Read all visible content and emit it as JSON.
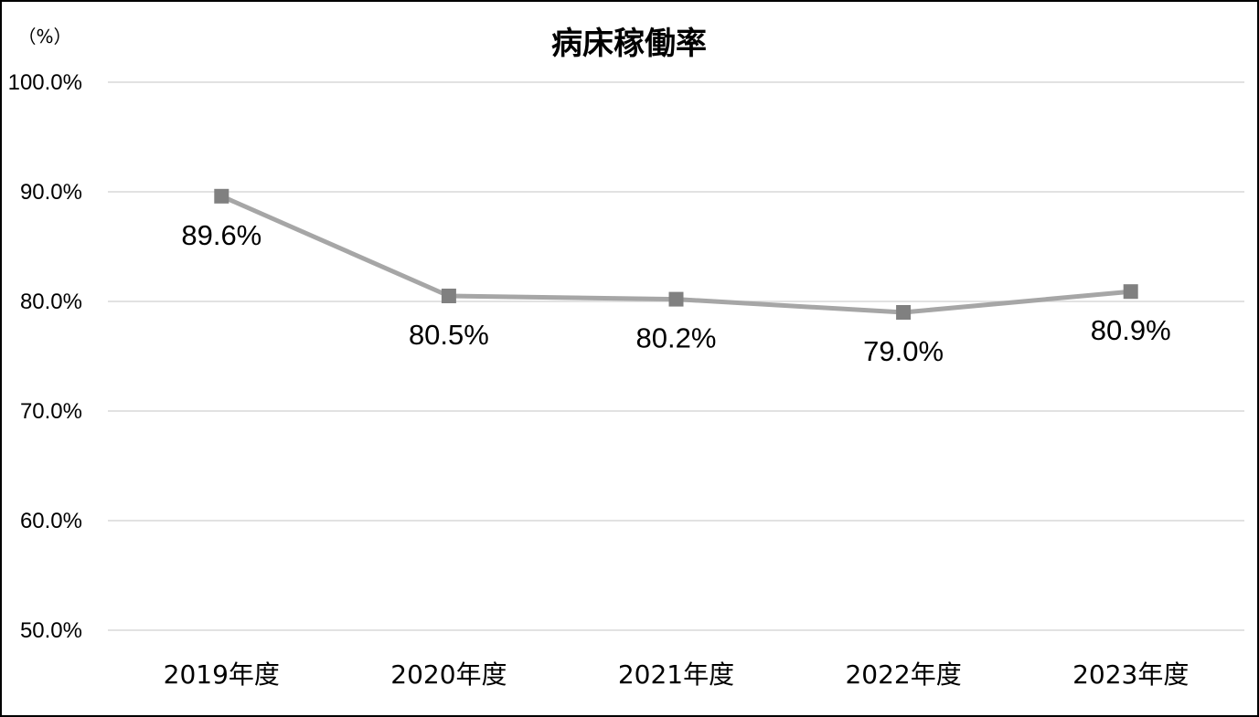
{
  "chart_data": {
    "type": "line",
    "title": "病床稼働率",
    "unit_label": "（%）",
    "xlabel": "",
    "ylabel": "",
    "categories": [
      "2019年度",
      "2020年度",
      "2021年度",
      "2022年度",
      "2023年度"
    ],
    "series": [
      {
        "values": [
          89.6,
          80.5,
          80.2,
          79.0,
          80.9
        ],
        "data_labels": [
          "89.6%",
          "80.5%",
          "80.2%",
          "79.0%",
          "80.9%"
        ],
        "color": "#a6a6a6",
        "marker_color": "#808080",
        "marker": "square"
      }
    ],
    "ylim": [
      50,
      100
    ],
    "y_ticks": [
      {
        "value": 100,
        "label": "100.0%"
      },
      {
        "value": 90,
        "label": "90.0%"
      },
      {
        "value": 80,
        "label": "80.0%"
      },
      {
        "value": 70,
        "label": "70.0%"
      },
      {
        "value": 60,
        "label": "60.0%"
      },
      {
        "value": 50,
        "label": "50.0%"
      }
    ],
    "grid": true,
    "legend": "none"
  }
}
